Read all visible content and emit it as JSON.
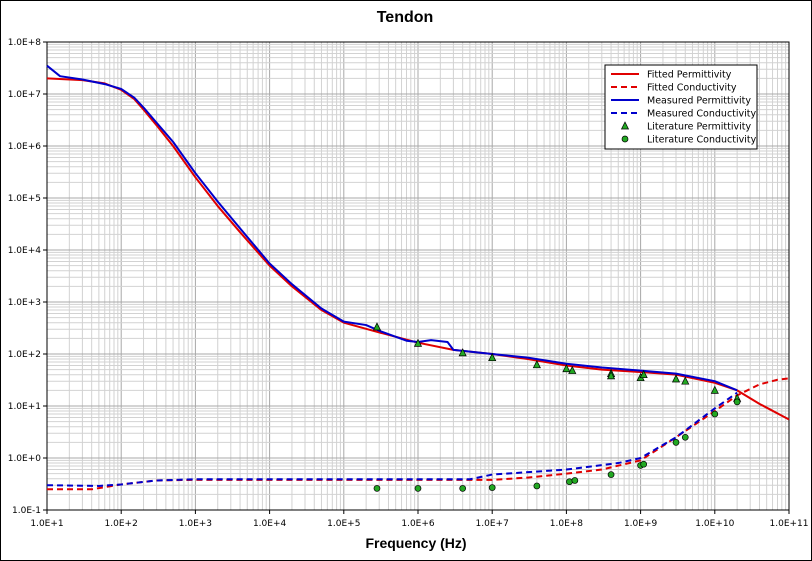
{
  "chart_data": {
    "type": "line",
    "title": "Tendon",
    "xlabel": "Frequency (Hz)",
    "ylabel": "",
    "x_scale": "log",
    "y_scale": "log",
    "xlim": [
      10,
      100000000000
    ],
    "ylim": [
      0.1,
      100000000
    ],
    "grid": true,
    "legend_position": "top-right",
    "x_tick_labels": [
      "1.0E+1",
      "1.0E+2",
      "1.0E+3",
      "1.0E+4",
      "1.0E+5",
      "1.0E+6",
      "1.0E+7",
      "1.0E+8",
      "1.0E+9",
      "1.0E+10",
      "1.0E+11"
    ],
    "y_tick_labels": [
      "1.0E-1",
      "1.0E+0",
      "1.0E+1",
      "1.0E+2",
      "1.0E+3",
      "1.0E+4",
      "1.0E+5",
      "1.0E+6",
      "1.0E+7",
      "1.0E+8"
    ],
    "colors": {
      "fitted": "#e00000",
      "measured": "#0000cc",
      "literature_fill": "#22a822"
    },
    "series": [
      {
        "name": "Fitted Permittivity",
        "style": "line",
        "dash": "solid",
        "color": "#e00000",
        "points": [
          [
            10,
            20000000.0
          ],
          [
            30,
            18500000.0
          ],
          [
            60,
            16000000.0
          ],
          [
            100,
            12000000.0
          ],
          [
            150,
            8000000.0
          ],
          [
            200,
            5000000.0
          ],
          [
            300,
            2500000.0
          ],
          [
            500,
            1000000.0
          ],
          [
            1000,
            250000.0
          ],
          [
            2000,
            70000.0
          ],
          [
            4000,
            22000.0
          ],
          [
            10000,
            5000.0
          ],
          [
            20000,
            2000.0
          ],
          [
            50000,
            700.0
          ],
          [
            100000,
            400.0
          ],
          [
            300000,
            260.0
          ],
          [
            1000000,
            165.0
          ],
          [
            3000000,
            120.0
          ],
          [
            10000000,
            100.0
          ],
          [
            30000000,
            80.0
          ],
          [
            100000000,
            60.0
          ],
          [
            300000000,
            50.0
          ],
          [
            1000000000,
            45.0
          ],
          [
            3000000000,
            40.0
          ],
          [
            10000000000,
            28.0
          ],
          [
            20000000000,
            20.0
          ],
          [
            40000000000,
            11.0
          ],
          [
            100000000000,
            5.5
          ]
        ]
      },
      {
        "name": "Fitted Conductivity",
        "style": "line",
        "dash": "dashed",
        "color": "#e00000",
        "points": [
          [
            10,
            0.25
          ],
          [
            40,
            0.25
          ],
          [
            100,
            0.31
          ],
          [
            300,
            0.37
          ],
          [
            1000,
            0.38
          ],
          [
            10000,
            0.38
          ],
          [
            100000,
            0.38
          ],
          [
            1000000,
            0.38
          ],
          [
            10000000,
            0.38
          ],
          [
            30000000,
            0.42
          ],
          [
            100000000,
            0.5
          ],
          [
            300000000,
            0.6
          ],
          [
            1000000000,
            0.9
          ],
          [
            3000000000,
            2.5
          ],
          [
            10000000000,
            8.0
          ],
          [
            20000000000,
            16
          ],
          [
            40000000000,
            26
          ],
          [
            70000000000,
            32
          ],
          [
            100000000000,
            34
          ]
        ]
      },
      {
        "name": "Measured Permittivity",
        "style": "line",
        "dash": "solid",
        "color": "#0000cc",
        "points": [
          [
            10,
            35000000.0
          ],
          [
            15,
            22000000.0
          ],
          [
            30,
            19000000.0
          ],
          [
            60,
            15500000.0
          ],
          [
            100,
            12500000.0
          ],
          [
            150,
            8500000.0
          ],
          [
            200,
            5500000.0
          ],
          [
            300,
            2800000.0
          ],
          [
            500,
            1200000.0
          ],
          [
            1000,
            300000.0
          ],
          [
            2000,
            85000.0
          ],
          [
            4000,
            26000.0
          ],
          [
            10000,
            5500.0
          ],
          [
            20000,
            2200.0
          ],
          [
            50000,
            750.0
          ],
          [
            100000,
            420.0
          ],
          [
            200000,
            360.0
          ],
          [
            300000,
            280.0
          ],
          [
            700000,
            180.0
          ],
          [
            1000000,
            170.0
          ],
          [
            1500000,
            185.0
          ],
          [
            2500000,
            170.0
          ],
          [
            3000000,
            120.0
          ],
          [
            10000000,
            100.0
          ],
          [
            30000000,
            85.0
          ],
          [
            100000000,
            65.0
          ],
          [
            300000000,
            55.0
          ],
          [
            1000000000,
            48.0
          ],
          [
            3000000000,
            42.0
          ],
          [
            10000000000,
            30.0
          ],
          [
            20000000000,
            20.0
          ]
        ]
      },
      {
        "name": "Measured Conductivity",
        "style": "line",
        "dash": "dashed",
        "color": "#0000cc",
        "points": [
          [
            10,
            0.3
          ],
          [
            50,
            0.29
          ],
          [
            100,
            0.31
          ],
          [
            300,
            0.37
          ],
          [
            1000,
            0.39
          ],
          [
            10000,
            0.39
          ],
          [
            100000,
            0.39
          ],
          [
            1000000,
            0.39
          ],
          [
            5000000,
            0.39
          ],
          [
            10000000,
            0.48
          ],
          [
            100000000,
            0.6
          ],
          [
            500000000,
            0.8
          ],
          [
            1000000000,
            1.0
          ],
          [
            3000000000,
            2.5
          ],
          [
            10000000000,
            9.0
          ],
          [
            20000000000,
            18
          ]
        ]
      },
      {
        "name": "Literature Permittivity",
        "style": "marker",
        "marker": "triangle",
        "color": "#22a822",
        "points": [
          [
            280000,
            330
          ],
          [
            1000000,
            160
          ],
          [
            4000000,
            105
          ],
          [
            10000000,
            85
          ],
          [
            40000000,
            62
          ],
          [
            100000000,
            52
          ],
          [
            120000000,
            48
          ],
          [
            400000000,
            42
          ],
          [
            400000000,
            38
          ],
          [
            1000000000,
            35
          ],
          [
            1100000000,
            40
          ],
          [
            3000000000,
            33
          ],
          [
            4000000000,
            30
          ],
          [
            10000000000,
            20
          ],
          [
            20000000000,
            14
          ]
        ]
      },
      {
        "name": "Literature Conductivity",
        "style": "marker",
        "marker": "circle",
        "color": "#22a822",
        "points": [
          [
            280000,
            0.26
          ],
          [
            1000000,
            0.26
          ],
          [
            4000000,
            0.26
          ],
          [
            10000000,
            0.27
          ],
          [
            40000000,
            0.29
          ],
          [
            110000000,
            0.35
          ],
          [
            130000000,
            0.37
          ],
          [
            400000000,
            0.48
          ],
          [
            1000000000,
            0.72
          ],
          [
            1100000000,
            0.76
          ],
          [
            3000000000,
            2.0
          ],
          [
            4000000000,
            2.5
          ],
          [
            10000000000,
            7.0
          ],
          [
            20000000000,
            12
          ]
        ]
      }
    ]
  }
}
